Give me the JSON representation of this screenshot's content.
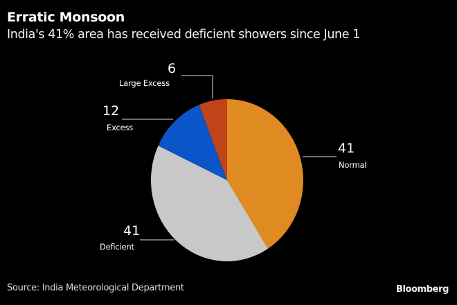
{
  "chart_data": {
    "type": "pie",
    "title": "Erratic Monsoon",
    "subtitle": "India's 41% area has received deficient showers since June 1",
    "slices": [
      {
        "label": "Normal",
        "value": 41,
        "color": "#e08a22"
      },
      {
        "label": "Deficient",
        "value": 41,
        "color": "#c8c8c8"
      },
      {
        "label": "Excess",
        "value": 12,
        "color": "#0a55c8"
      },
      {
        "label": "Large Excess",
        "value": 6,
        "color": "#c04418"
      }
    ],
    "start_angle": "12 o'clock",
    "direction": "clockwise",
    "value_labels": [
      "41",
      "41",
      "12",
      "6"
    ],
    "legend": "none"
  },
  "footer": {
    "source": "Source: India Meteorological Department",
    "brand": "Bloomberg"
  }
}
